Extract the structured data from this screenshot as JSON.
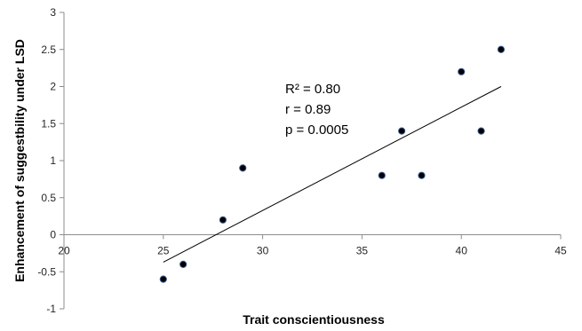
{
  "chart_data": {
    "type": "scatter",
    "title": "",
    "xlabel": "Trait conscientiousness",
    "ylabel": "Enhancement of suggestbility under LSD",
    "xlim": [
      20,
      45
    ],
    "ylim": [
      -1,
      3
    ],
    "x_ticks": [
      20,
      25,
      30,
      35,
      40,
      45
    ],
    "y_ticks": [
      -1,
      -0.5,
      0,
      0.5,
      1,
      1.5,
      2,
      2.5,
      3
    ],
    "x_tick_labels": [
      "20",
      "25",
      "30",
      "35",
      "40",
      "45"
    ],
    "y_tick_labels": [
      "-1",
      "-0.5",
      "0",
      "0.5",
      "1",
      "1.5",
      "2",
      "2.5",
      "3"
    ],
    "grid": false,
    "legend": "none",
    "points": [
      {
        "x": 25,
        "y": -0.6
      },
      {
        "x": 26,
        "y": -0.4
      },
      {
        "x": 28,
        "y": 0.2
      },
      {
        "x": 29,
        "y": 0.9
      },
      {
        "x": 36,
        "y": 0.8
      },
      {
        "x": 37,
        "y": 1.4
      },
      {
        "x": 38,
        "y": 0.8
      },
      {
        "x": 40,
        "y": 2.2
      },
      {
        "x": 41,
        "y": 1.4
      },
      {
        "x": 42,
        "y": 2.5
      }
    ],
    "trendline": {
      "x": [
        25,
        42
      ],
      "y": [
        -0.37,
        2.0
      ]
    },
    "annotations": [
      "R² = 0.80",
      "r = 0.89",
      "p = 0.0005"
    ],
    "colors": {
      "marker": "#000000",
      "marker_edge": "#3a5a8c",
      "line": "#000000",
      "axis": "#8c8c8c"
    }
  }
}
